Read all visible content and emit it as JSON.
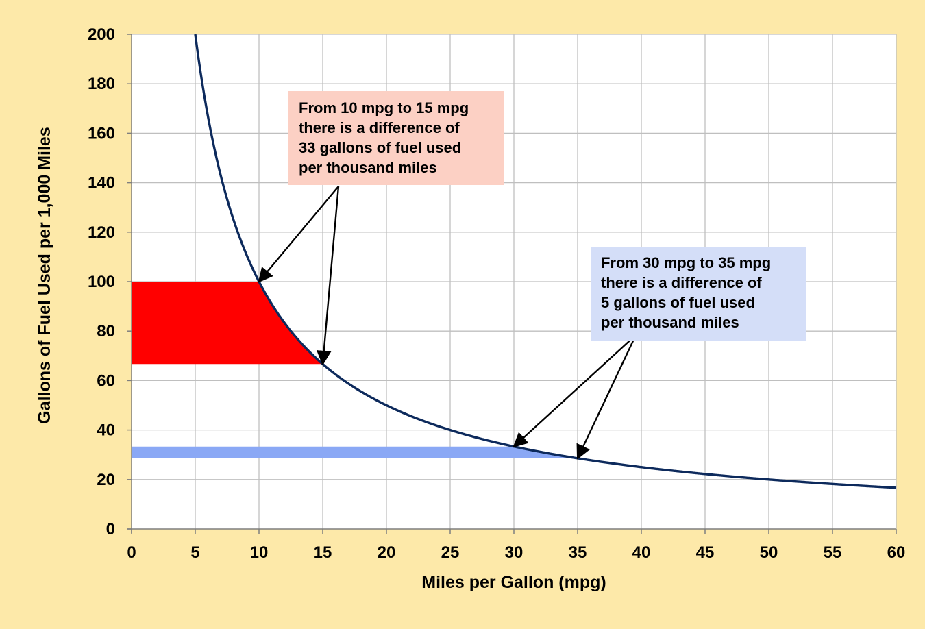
{
  "colors": {
    "background": "#fde9a9",
    "plot_area": "#ffffff",
    "grid": "#bfbfbf",
    "curve": "#0d2a5c",
    "band_10_15": "#ff0000",
    "band_30_35": "#8aa8f5",
    "note_1_bg": "#fcd0c4",
    "note_2_bg": "#d4def8"
  },
  "chart_data": {
    "type": "line",
    "xlabel": "Miles per Gallon (mpg)",
    "ylabel": "Gallons of Fuel Used per 1,000 Miles",
    "xlim": [
      0,
      60
    ],
    "ylim": [
      0,
      200
    ],
    "xticks": [
      0,
      5,
      10,
      15,
      20,
      25,
      30,
      35,
      40,
      45,
      50,
      55,
      60
    ],
    "yticks": [
      0,
      20,
      40,
      60,
      80,
      100,
      120,
      140,
      160,
      180,
      200
    ],
    "grid": true,
    "series": [
      {
        "function": "gallons = 1000 / mpg",
        "x": [
          5,
          6,
          7,
          8,
          10,
          12,
          15,
          20,
          25,
          30,
          35,
          40,
          45,
          50,
          55,
          60
        ],
        "y": [
          200,
          166.7,
          142.9,
          125,
          100,
          83.3,
          66.7,
          50,
          40,
          33.3,
          28.6,
          25,
          22.2,
          20,
          18.2,
          16.7
        ]
      }
    ],
    "highlights": [
      {
        "from_mpg": 10,
        "to_mpg": 15,
        "y_from": 66.7,
        "y_to": 100,
        "color": "#ff0000"
      },
      {
        "from_mpg": 30,
        "to_mpg": 35,
        "y_from": 28.6,
        "y_to": 33.3,
        "color": "#8aa8f5"
      }
    ],
    "annotations": [
      {
        "lines": [
          "From 10 mpg to 15 mpg",
          "there is a difference of",
          "33 gallons of fuel used",
          "per thousand miles"
        ],
        "arrow_targets_mpg": [
          10,
          15
        ]
      },
      {
        "lines": [
          "From 30 mpg to 35 mpg",
          "there is a difference of",
          "5 gallons of fuel used",
          "per thousand miles"
        ],
        "arrow_targets_mpg": [
          30,
          35
        ]
      }
    ]
  }
}
